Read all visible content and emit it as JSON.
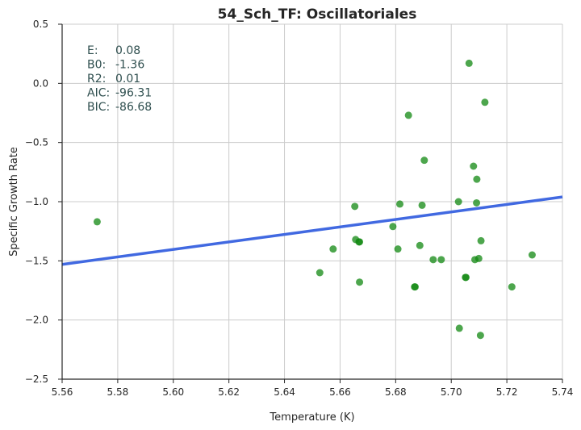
{
  "chart_data": {
    "type": "scatter",
    "title": "54_Sch_TF: Oscillatoriales",
    "xlabel": "Temperature (K)",
    "ylabel": "Specific Growth Rate",
    "xlim": [
      5.56,
      5.74
    ],
    "ylim": [
      -2.5,
      0.5
    ],
    "xticks": [
      5.56,
      5.58,
      5.6,
      5.62,
      5.64,
      5.66,
      5.68,
      5.7,
      5.72,
      5.74
    ],
    "xtick_labels": [
      "5.56",
      "5.58",
      "5.60",
      "5.62",
      "5.64",
      "5.66",
      "5.68",
      "5.70",
      "5.72",
      "5.74"
    ],
    "yticks": [
      0.5,
      0.0,
      -0.5,
      -1.0,
      -1.5,
      -2.0,
      -2.5
    ],
    "ytick_labels": [
      "0.5",
      "0.0",
      "−0.5",
      "−1.0",
      "−1.5",
      "−2.0",
      "−2.5"
    ],
    "grid": true,
    "series": [
      {
        "name": "observations",
        "kind": "scatter",
        "color": "#118811",
        "points": [
          {
            "x": 5.5726,
            "y": -1.17
          },
          {
            "x": 5.6527,
            "y": -1.6
          },
          {
            "x": 5.6575,
            "y": -1.4
          },
          {
            "x": 5.6653,
            "y": -1.04
          },
          {
            "x": 5.6656,
            "y": -1.32
          },
          {
            "x": 5.6668,
            "y": -1.34
          },
          {
            "x": 5.667,
            "y": -1.34
          },
          {
            "x": 5.667,
            "y": -1.68
          },
          {
            "x": 5.679,
            "y": -1.21
          },
          {
            "x": 5.6808,
            "y": -1.4
          },
          {
            "x": 5.6815,
            "y": -1.02
          },
          {
            "x": 5.6846,
            "y": -0.27
          },
          {
            "x": 5.6868,
            "y": -1.72
          },
          {
            "x": 5.687,
            "y": -1.72
          },
          {
            "x": 5.6887,
            "y": -1.37
          },
          {
            "x": 5.6895,
            "y": -1.03
          },
          {
            "x": 5.6903,
            "y": -0.65
          },
          {
            "x": 5.6935,
            "y": -1.49
          },
          {
            "x": 5.6964,
            "y": -1.49
          },
          {
            "x": 5.7026,
            "y": -1.0
          },
          {
            "x": 5.7029,
            "y": -2.07
          },
          {
            "x": 5.7051,
            "y": -1.64
          },
          {
            "x": 5.7053,
            "y": -1.64
          },
          {
            "x": 5.7064,
            "y": 0.17
          },
          {
            "x": 5.708,
            "y": -0.7
          },
          {
            "x": 5.7085,
            "y": -1.49
          },
          {
            "x": 5.7091,
            "y": -1.01
          },
          {
            "x": 5.7092,
            "y": -0.81
          },
          {
            "x": 5.7099,
            "y": -1.48
          },
          {
            "x": 5.7105,
            "y": -2.13
          },
          {
            "x": 5.7107,
            "y": -1.33
          },
          {
            "x": 5.7121,
            "y": -0.16
          },
          {
            "x": 5.7218,
            "y": -1.72
          },
          {
            "x": 5.7291,
            "y": -1.45
          }
        ]
      },
      {
        "name": "fit",
        "kind": "line",
        "color": "#4169e1",
        "points": [
          {
            "x": 5.56,
            "y": -1.53
          },
          {
            "x": 5.74,
            "y": -0.96
          }
        ]
      }
    ],
    "annotations": [
      {
        "label": "E:",
        "value": "0.08",
        "color": "#2f4f4f"
      },
      {
        "label": "B0:",
        "value": "-1.36",
        "color": "#2f4f4f"
      },
      {
        "label": "R2:",
        "value": "0.01",
        "color": "#2f4f4f"
      },
      {
        "label": "AIC:",
        "value": "-96.31",
        "color": "#2f4f4f"
      },
      {
        "label": "BIC:",
        "value": "-86.68",
        "color": "#2f4f4f"
      }
    ]
  }
}
